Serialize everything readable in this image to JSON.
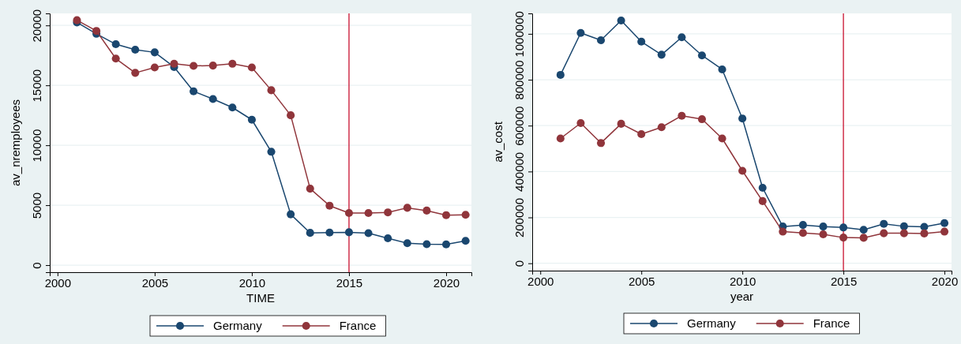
{
  "chart_data": [
    {
      "type": "line",
      "xlabel": "TIME",
      "ylabel": "av_nremployees",
      "x": [
        2001,
        2002,
        2003,
        2004,
        2005,
        2006,
        2007,
        2008,
        2009,
        2010,
        2011,
        2012,
        2013,
        2014,
        2015,
        2016,
        2017,
        2018,
        2019,
        2020,
        2021
      ],
      "series": [
        {
          "name": "Germany",
          "color": "#1a476f",
          "values": [
            20250,
            19300,
            18430,
            17970,
            17750,
            16530,
            14500,
            13860,
            13150,
            12130,
            9460,
            4240,
            2690,
            2720,
            2740,
            2670,
            2240,
            1830,
            1750,
            1730,
            2030
          ]
        },
        {
          "name": "France",
          "color": "#90353b",
          "values": [
            20430,
            19540,
            17230,
            16040,
            16490,
            16800,
            16620,
            16650,
            16800,
            16490,
            14590,
            12500,
            6380,
            4960,
            4350,
            4350,
            4400,
            4780,
            4550,
            4170,
            4200
          ]
        }
      ],
      "xlim": [
        1999.6,
        2021.3
      ],
      "xticks": [
        2000,
        2005,
        2010,
        2015,
        2020
      ],
      "ylim": [
        -590,
        21000
      ],
      "yticks": [
        0,
        5000,
        10000,
        15000,
        20000
      ],
      "ref_lines": [
        {
          "axis": "x",
          "value": 2015,
          "color": "#c8102e"
        }
      ],
      "grid": "y",
      "legend": "bottom",
      "marker": "circle",
      "line_style": "solid"
    },
    {
      "type": "line",
      "xlabel": "year",
      "ylabel": "av_cost",
      "x": [
        2001,
        2002,
        2003,
        2004,
        2005,
        2006,
        2007,
        2008,
        2009,
        2010,
        2011,
        2012,
        2013,
        2014,
        2015,
        2016,
        2017,
        2018,
        2019,
        2020
      ],
      "series": [
        {
          "name": "Germany",
          "color": "#1a476f",
          "values": [
            821000,
            1004000,
            972000,
            1058000,
            966000,
            909000,
            985000,
            906000,
            845000,
            631000,
            329000,
            160000,
            167000,
            160000,
            156000,
            146000,
            172000,
            161000,
            159000,
            175000
          ]
        },
        {
          "name": "France",
          "color": "#90353b",
          "values": [
            544000,
            611000,
            524000,
            608000,
            563000,
            593000,
            643000,
            628000,
            544000,
            403000,
            271000,
            138000,
            132000,
            126000,
            112000,
            111000,
            131000,
            131000,
            130000,
            138000
          ]
        }
      ],
      "xlim": [
        1999.6,
        2020.35
      ],
      "xticks": [
        2000,
        2005,
        2010,
        2015,
        2020
      ],
      "ylim": [
        -32000,
        1089000
      ],
      "yticks": [
        0,
        200000,
        400000,
        600000,
        800000,
        1000000
      ],
      "ref_lines": [
        {
          "axis": "x",
          "value": 2015,
          "color": "#c8102e"
        }
      ],
      "grid": "y",
      "legend": "bottom",
      "marker": "circle",
      "line_style": "solid"
    }
  ]
}
